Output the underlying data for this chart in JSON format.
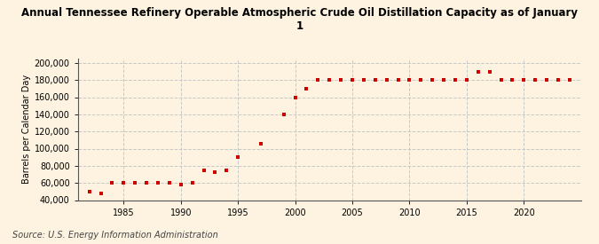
{
  "title": "Annual Tennessee Refinery Operable Atmospheric Crude Oil Distillation Capacity as of January\n1",
  "ylabel": "Barrels per Calendar Day",
  "source": "Source: U.S. Energy Information Administration",
  "background_color": "#fdf3e0",
  "plot_bg_color": "#fdf3e0",
  "grid_color": "#c8c8c8",
  "marker_color": "#cc0000",
  "years": [
    1982,
    1983,
    1984,
    1985,
    1986,
    1987,
    1988,
    1989,
    1990,
    1991,
    1992,
    1993,
    1994,
    1995,
    1997,
    1999,
    2000,
    2001,
    2002,
    2003,
    2004,
    2005,
    2006,
    2007,
    2008,
    2009,
    2010,
    2011,
    2012,
    2013,
    2014,
    2015,
    2016,
    2017,
    2018,
    2019,
    2020,
    2021,
    2022,
    2023,
    2024
  ],
  "values": [
    50000,
    48000,
    60000,
    60000,
    60000,
    60000,
    60000,
    60000,
    58000,
    60000,
    75000,
    73000,
    75000,
    90000,
    106000,
    140000,
    160000,
    170000,
    180000,
    180000,
    180000,
    180000,
    180000,
    180000,
    180000,
    180000,
    180000,
    180000,
    180000,
    180000,
    180000,
    180000,
    190000,
    190000,
    180000,
    180000,
    180000,
    180000,
    180000,
    180000,
    180000
  ],
  "ylim": [
    40000,
    205000
  ],
  "yticks": [
    40000,
    60000,
    80000,
    100000,
    120000,
    140000,
    160000,
    180000,
    200000
  ],
  "xlim": [
    1981,
    2025
  ],
  "xticks": [
    1985,
    1990,
    1995,
    2000,
    2005,
    2010,
    2015,
    2020
  ],
  "title_fontsize": 8.5,
  "axis_fontsize": 7,
  "source_fontsize": 7
}
